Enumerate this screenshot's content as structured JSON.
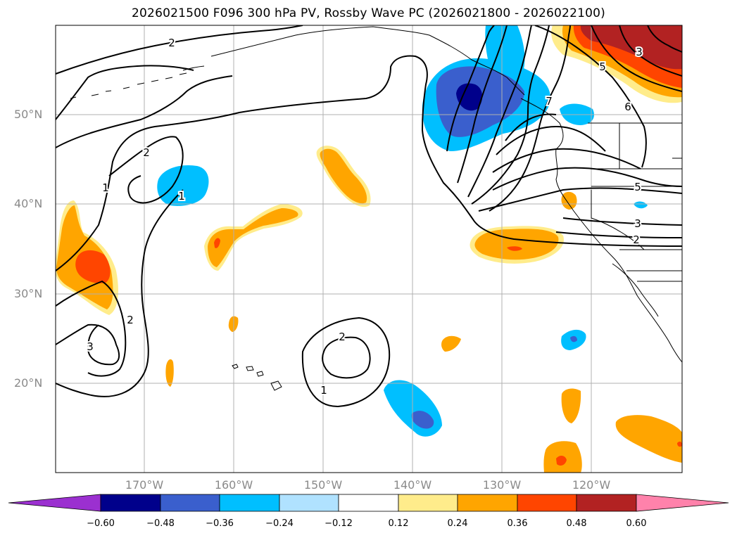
{
  "title": "2026021500 F096 300 hPa PV, Rossby Wave PC (2026021800 - 2026022100)",
  "latitude_labels": [
    "50°N",
    "40°N",
    "30°N",
    "20°N"
  ],
  "longitude_labels": [
    "170°W",
    "160°W",
    "150°W",
    "140°W",
    "130°W",
    "120°W"
  ],
  "contour_labels": [
    "2",
    "2",
    "1",
    "1",
    "2",
    "3",
    "2",
    "1",
    "5",
    "6",
    "7",
    "5",
    "3",
    "2",
    "3"
  ],
  "colorbar": {
    "ticks": [
      "−0.60",
      "−0.48",
      "−0.36",
      "−0.24",
      "−0.12",
      "0.12",
      "0.24",
      "0.36",
      "0.48",
      "0.60"
    ],
    "colors": [
      "#9b30d0",
      "#00008b",
      "#3a5fcd",
      "#00bfff",
      "#b0e2ff",
      "#ffffff",
      "#ffec8b",
      "#ffa500",
      "#ff4500",
      "#b22222",
      "#ff82ab"
    ]
  },
  "colors": {
    "frame": "#000000",
    "grid": "#b0b0b0",
    "coast": "#000000"
  }
}
